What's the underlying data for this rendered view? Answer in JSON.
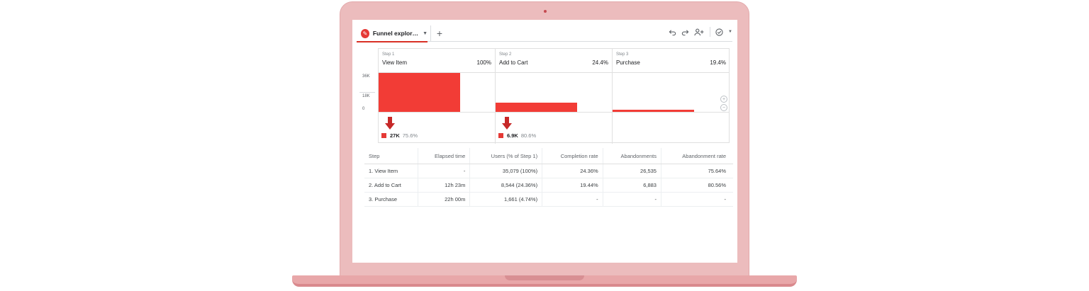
{
  "tab": {
    "label": "Funnel explor…",
    "icon": "pencil-icon",
    "add_icon": "plus-icon"
  },
  "toolbar": {
    "undo_icon": "undo-icon",
    "redo_icon": "redo-icon",
    "share_icon": "share-users-icon",
    "status_icon": "check-circle-icon"
  },
  "chart_data": {
    "type": "bar",
    "y_ticks": [
      "36K",
      "18K",
      "0"
    ],
    "ylim": [
      0,
      36000
    ],
    "steps": [
      {
        "step": "Step 1",
        "name": "View Item",
        "percent": "100%",
        "value": 35079,
        "drop_value": "27K",
        "drop_pct": "75.6%"
      },
      {
        "step": "Step 2",
        "name": "Add to Cart",
        "percent": "24.4%",
        "value": 8544,
        "drop_value": "6.9K",
        "drop_pct": "80.6%"
      },
      {
        "step": "Step 3",
        "name": "Purchase",
        "percent": "19.4%",
        "value": 1661
      }
    ]
  },
  "table": {
    "headers": [
      "Step",
      "Elapsed time",
      "Users (% of Step 1)",
      "Completion rate",
      "Abandonments",
      "Abandonment rate"
    ],
    "rows": [
      [
        "1. View Item",
        "-",
        "35,079 (100%)",
        "24.36%",
        "26,535",
        "75.64%"
      ],
      [
        "2. Add to Cart",
        "12h 23m",
        "8,544 (24.36%)",
        "19.44%",
        "6,883",
        "80.56%"
      ],
      [
        "3. Purchase",
        "22h 00m",
        "1,661 (4.74%)",
        "-",
        "-",
        "-"
      ]
    ]
  },
  "colors": {
    "accent": "#f23c36",
    "arrow": "#c62828",
    "laptop": "#ecbcbd"
  }
}
